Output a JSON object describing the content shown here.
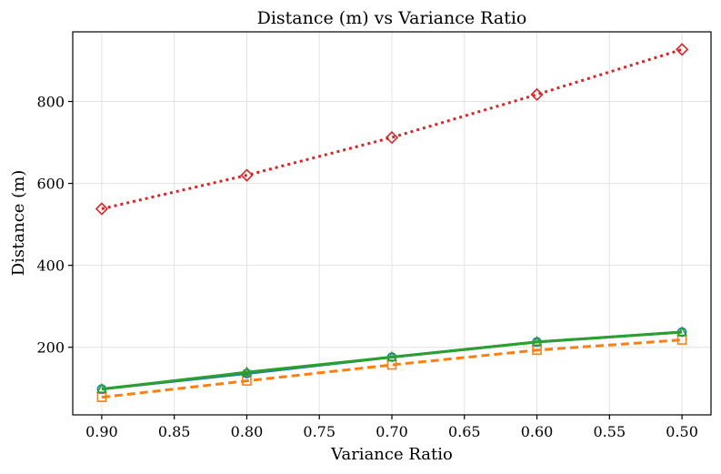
{
  "chart_data": {
    "type": "line",
    "title": "Distance (m) vs Variance Ratio",
    "xlabel": "Variance Ratio",
    "ylabel": "Distance (m)",
    "x": [
      0.9,
      0.8,
      0.7,
      0.6,
      0.5
    ],
    "xlim": [
      0.92,
      0.48
    ],
    "x_inverted": true,
    "ylim": [
      35,
      970
    ],
    "xticks": [
      0.9,
      0.85,
      0.8,
      0.75,
      0.7,
      0.65,
      0.6,
      0.55,
      0.5
    ],
    "xtick_labels": [
      "0.90",
      "0.85",
      "0.80",
      "0.75",
      "0.70",
      "0.65",
      "0.60",
      "0.55",
      "0.50"
    ],
    "yticks": [
      200,
      400,
      600,
      800
    ],
    "ytick_labels": [
      "200",
      "400",
      "600",
      "800"
    ],
    "grid": true,
    "legend": false,
    "series": [
      {
        "values": [
          538,
          620,
          712,
          817,
          927
        ],
        "color": "#d62728",
        "linestyle": "dotted",
        "marker": "diamond"
      },
      {
        "values": [
          78,
          118,
          157,
          193,
          218
        ],
        "color": "#ff7f0e",
        "linestyle": "dashed",
        "marker": "square"
      },
      {
        "values": [
          98,
          136,
          176,
          213,
          237
        ],
        "color": "#1f77b4",
        "linestyle": "solid",
        "marker": "circle"
      },
      {
        "values": [
          98,
          139,
          176,
          213,
          237
        ],
        "color": "#2ca02c",
        "linestyle": "solid",
        "marker": "triangle"
      }
    ]
  }
}
